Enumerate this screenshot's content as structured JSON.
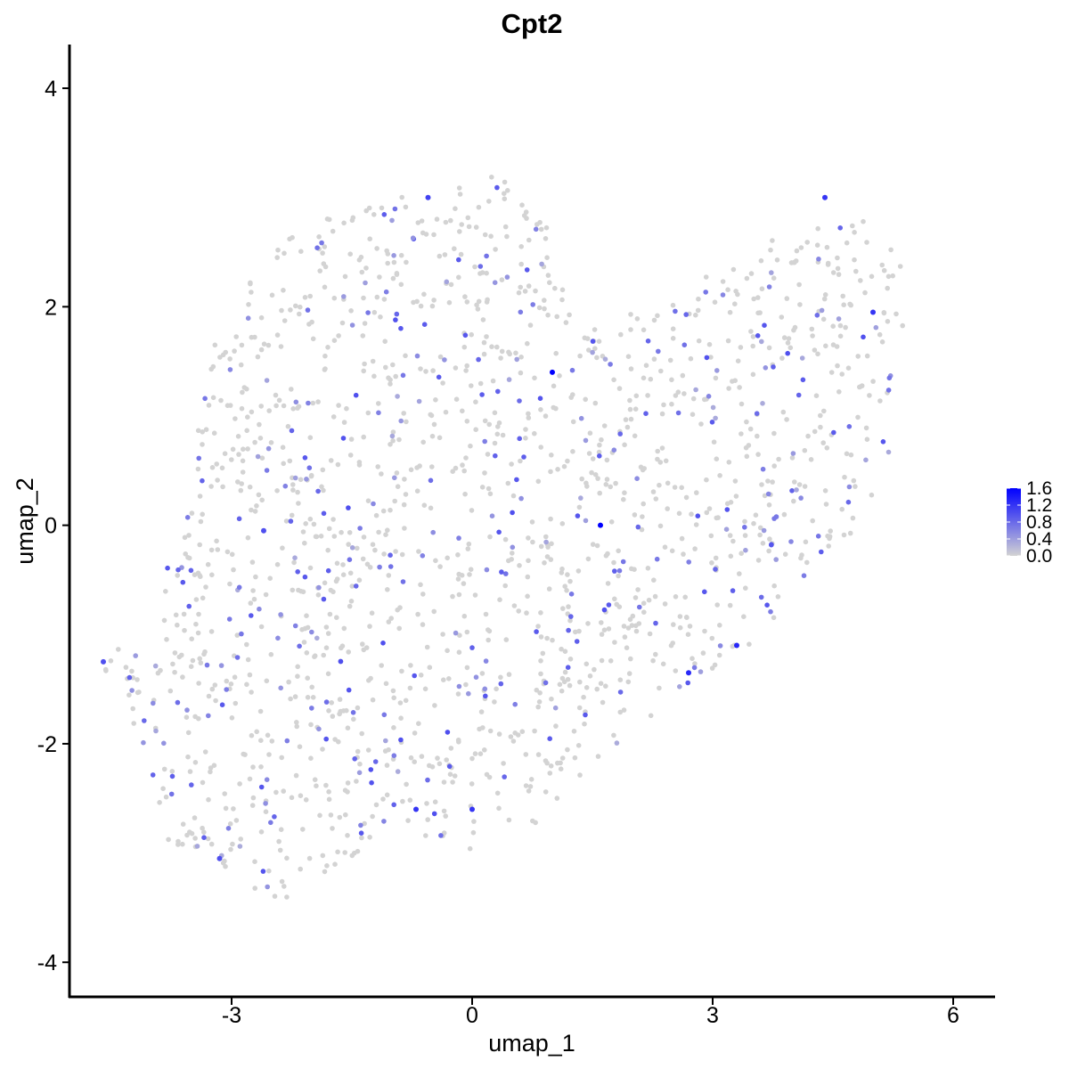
{
  "chart_data": {
    "type": "scatter",
    "title": "Cpt2",
    "xlabel": "umap_1",
    "ylabel": "umap_2",
    "xlim": [
      -5.0,
      6.5
    ],
    "ylim": [
      -4.3,
      4.4
    ],
    "x_ticks": [
      -3,
      0,
      3,
      6
    ],
    "x_tick_labels": [
      "-3",
      "0",
      "3",
      "6"
    ],
    "y_ticks": [
      -4,
      -2,
      0,
      2,
      4
    ],
    "y_tick_labels": [
      "-4",
      "-2",
      "0",
      "2",
      "4"
    ],
    "grid": false,
    "legend_position": "right",
    "colorbar": {
      "min": 0.0,
      "max": 1.6,
      "ticks": [
        0.0,
        0.4,
        0.8,
        1.2,
        1.6
      ],
      "tick_labels": [
        "0.0",
        "0.4",
        "0.8",
        "1.2",
        "1.6"
      ],
      "low_color": "#d3d3d3",
      "high_color": "#0000ff"
    },
    "highlighted_points": [
      {
        "x": 1.0,
        "y": 1.4,
        "value": 1.6
      },
      {
        "x": 1.6,
        "y": 0.0,
        "value": 1.6
      },
      {
        "x": 3.3,
        "y": -1.1,
        "value": 1.3
      },
      {
        "x": 2.7,
        "y": -1.35,
        "value": 1.3
      },
      {
        "x": 0.0,
        "y": -2.6,
        "value": 1.2
      },
      {
        "x": -0.7,
        "y": -2.6,
        "value": 1.2
      },
      {
        "x": 4.4,
        "y": 3.0,
        "value": 1.2
      },
      {
        "x": 5.0,
        "y": 1.95,
        "value": 1.2
      },
      {
        "x": -0.55,
        "y": 3.0,
        "value": 1.1
      },
      {
        "x": -4.6,
        "y": -1.25,
        "value": 1.0
      },
      {
        "x": -3.15,
        "y": -3.05,
        "value": 1.0
      },
      {
        "x": -2.6,
        "y": -0.05,
        "value": 1.0
      }
    ],
    "points_description_note": ""
  },
  "point_cloud": {
    "seed": 7,
    "count": 1700,
    "expressed_fraction": 0.2,
    "polygon": [
      [
        -4.7,
        -1.25
      ],
      [
        -4.3,
        -1.5
      ],
      [
        -4.15,
        -2.2
      ],
      [
        -3.8,
        -2.9
      ],
      [
        -3.2,
        -3.1
      ],
      [
        -2.8,
        -3.3
      ],
      [
        -2.4,
        -3.5
      ],
      [
        -2.05,
        -3.35
      ],
      [
        -1.4,
        -3.05
      ],
      [
        -0.8,
        -2.85
      ],
      [
        -0.2,
        -3.0
      ],
      [
        0.3,
        -2.95
      ],
      [
        0.7,
        -2.8
      ],
      [
        1.1,
        -2.5
      ],
      [
        1.6,
        -2.1
      ],
      [
        2.2,
        -1.8
      ],
      [
        2.8,
        -1.5
      ],
      [
        3.4,
        -1.15
      ],
      [
        3.9,
        -0.75
      ],
      [
        4.4,
        -0.35
      ],
      [
        4.9,
        0.05
      ],
      [
        5.2,
        0.6
      ],
      [
        5.35,
        1.3
      ],
      [
        5.45,
        2.0
      ],
      [
        5.35,
        2.45
      ],
      [
        4.95,
        2.75
      ],
      [
        4.5,
        3.1
      ],
      [
        4.2,
        2.85
      ],
      [
        3.8,
        2.7
      ],
      [
        3.5,
        2.6
      ],
      [
        3.1,
        2.4
      ],
      [
        2.7,
        2.15
      ],
      [
        2.2,
        2.0
      ],
      [
        1.8,
        1.9
      ],
      [
        1.3,
        1.75
      ],
      [
        1.1,
        2.3
      ],
      [
        0.9,
        2.9
      ],
      [
        0.3,
        3.2
      ],
      [
        -0.4,
        3.1
      ],
      [
        -1.2,
        3.0
      ],
      [
        -1.9,
        2.8
      ],
      [
        -2.4,
        2.6
      ],
      [
        -2.9,
        2.1
      ],
      [
        -3.2,
        1.7
      ],
      [
        -3.4,
        1.0
      ],
      [
        -3.5,
        0.3
      ],
      [
        -3.8,
        -0.3
      ],
      [
        -4.05,
        -0.9
      ]
    ]
  }
}
